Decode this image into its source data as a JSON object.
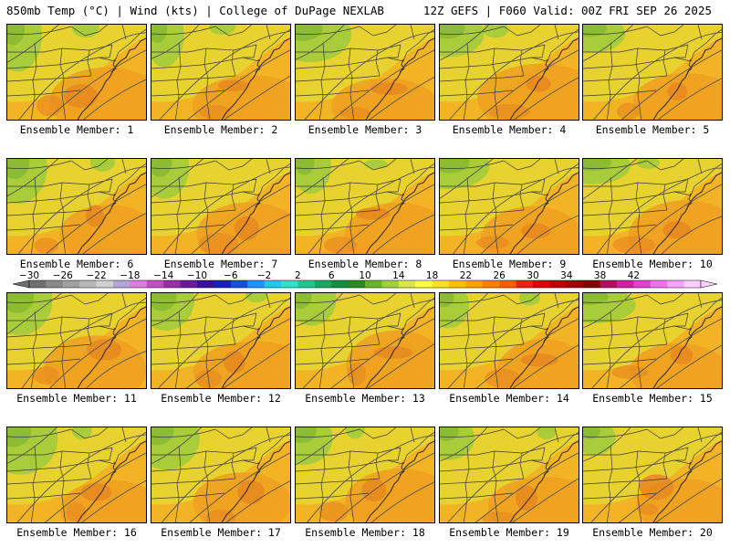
{
  "header": {
    "left": "850mb Temp (°C) | Wind (kts) | College of DuPage NEXLAB",
    "right": "12Z GEFS | F060 Valid: 00Z FRI SEP 26 2025"
  },
  "members": [
    {
      "label": "Ensemble Member: 1"
    },
    {
      "label": "Ensemble Member: 2"
    },
    {
      "label": "Ensemble Member: 3"
    },
    {
      "label": "Ensemble Member: 4"
    },
    {
      "label": "Ensemble Member: 5"
    },
    {
      "label": "Ensemble Member: 6"
    },
    {
      "label": "Ensemble Member: 7"
    },
    {
      "label": "Ensemble Member: 8"
    },
    {
      "label": "Ensemble Member: 9"
    },
    {
      "label": "Ensemble Member: 10"
    },
    {
      "label": "Ensemble Member: 11"
    },
    {
      "label": "Ensemble Member: 12"
    },
    {
      "label": "Ensemble Member: 13"
    },
    {
      "label": "Ensemble Member: 14"
    },
    {
      "label": "Ensemble Member: 15"
    },
    {
      "label": "Ensemble Member: 16"
    },
    {
      "label": "Ensemble Member: 17"
    },
    {
      "label": "Ensemble Member: 18"
    },
    {
      "label": "Ensemble Member: 19"
    },
    {
      "label": "Ensemble Member: 20"
    }
  ],
  "colorbar": {
    "label_values": [
      "−30",
      "−26",
      "−22",
      "−18",
      "−14",
      "−10",
      "−6",
      "−2",
      "2",
      "6",
      "10",
      "14",
      "18",
      "22",
      "26",
      "30",
      "34",
      "38",
      "42"
    ],
    "colors": [
      "#707070",
      "#8a8a8a",
      "#a0a0a0",
      "#b8b8b8",
      "#d0d0d0",
      "#b6a6d8",
      "#e07ae0",
      "#c44dc4",
      "#9a2ea8",
      "#6a1a9a",
      "#3a10a0",
      "#1a20c0",
      "#1450e0",
      "#1e90ff",
      "#20c8f0",
      "#30e0c8",
      "#20c890",
      "#18a860",
      "#109040",
      "#2a8a20",
      "#6ab428",
      "#a0d040",
      "#d8e848",
      "#ffff40",
      "#ffe020",
      "#ffc000",
      "#ffa000",
      "#ff8000",
      "#ff5a00",
      "#f02010",
      "#e00000",
      "#c00000",
      "#a00000",
      "#800000",
      "#b01060",
      "#d020a0",
      "#e040d0",
      "#f070f0",
      "#ffa0ff",
      "#ffd0ff"
    ]
  },
  "palette": {
    "map_background": "#f0b020",
    "state_lines": "#404040",
    "isohypse": "#555555"
  }
}
